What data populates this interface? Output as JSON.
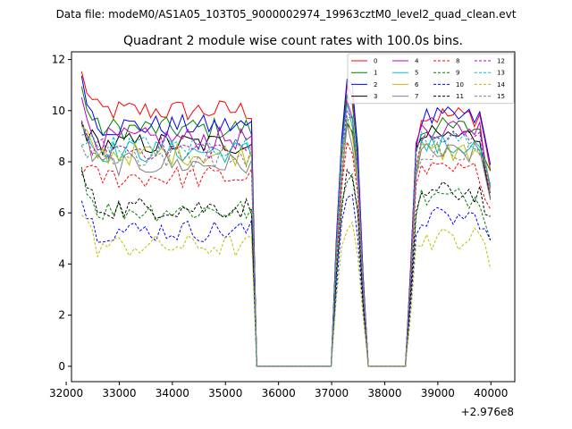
{
  "header": {
    "data_file": "Data file: modeM0/AS1A05_103T05_9000002974_19963cztM0_level2_quad_clean.evt"
  },
  "chart_data": {
    "type": "line",
    "title": "Quadrant 2 module wise count rates with 100.0s bins.",
    "xlabel": "",
    "ylabel": "",
    "x_offset_label": "+2.976e8",
    "xlim": [
      32100,
      40450
    ],
    "ylim": [
      -0.6,
      12.3
    ],
    "x_ticks": [
      32000,
      33000,
      34000,
      35000,
      36000,
      37000,
      38000,
      39000,
      40000
    ],
    "y_ticks": [
      0,
      2,
      4,
      6,
      8,
      10,
      12
    ],
    "x_tick_labels": [
      "32000",
      "33000",
      "34000",
      "35000",
      "36000",
      "37000",
      "38000",
      "39000",
      "40000"
    ],
    "y_tick_labels": [
      "0",
      "2",
      "4",
      "6",
      "8",
      "10",
      "12"
    ],
    "legend": {
      "placement": "top-right",
      "columns": 4
    },
    "segments": [
      {
        "start": 32290,
        "end": 35510
      },
      {
        "start": 37040,
        "end": 37620
      },
      {
        "start": 38410,
        "end": 40060
      }
    ],
    "gaps": [
      {
        "start": 35510,
        "end": 37040
      },
      {
        "start": 37620,
        "end": 38410
      }
    ],
    "bin_width_s": 100,
    "series": [
      {
        "name": "0",
        "color": "#ff0000",
        "style": "solid",
        "level": 10.0,
        "start": 11.4,
        "peak": 11.0,
        "post": 9.8,
        "end": 6.8
      },
      {
        "name": "1",
        "color": "#008000",
        "style": "solid",
        "level": 9.3,
        "start": 10.8,
        "peak": 10.6,
        "post": 9.3,
        "end": 6.5
      },
      {
        "name": "2",
        "color": "#0000ff",
        "style": "solid",
        "level": 9.4,
        "start": 11.5,
        "peak": 11.0,
        "post": 9.7,
        "end": 7.0
      },
      {
        "name": "3",
        "color": "#000000",
        "style": "solid",
        "level": 8.7,
        "start": 9.5,
        "peak": 9.8,
        "post": 9.0,
        "end": 6.0
      },
      {
        "name": "4",
        "color": "#bf00bf",
        "style": "solid",
        "level": 8.9,
        "start": 10.2,
        "peak": 10.4,
        "post": 9.3,
        "end": 6.4
      },
      {
        "name": "5",
        "color": "#00bfbf",
        "style": "solid",
        "level": 8.4,
        "start": 9.6,
        "peak": 10.0,
        "post": 8.6,
        "end": 6.2
      },
      {
        "name": "6",
        "color": "#bfbf00",
        "style": "solid",
        "level": 8.3,
        "start": 9.2,
        "peak": 9.5,
        "post": 8.4,
        "end": 6.0
      },
      {
        "name": "7",
        "color": "#808080",
        "style": "solid",
        "level": 7.9,
        "start": 9.3,
        "peak": 9.2,
        "post": 8.3,
        "end": 5.8
      },
      {
        "name": "8",
        "color": "#ff0000",
        "style": "dashed",
        "level": 7.4,
        "start": 7.8,
        "peak": 8.7,
        "post": 7.6,
        "end": 5.6
      },
      {
        "name": "9",
        "color": "#008000",
        "style": "dashed",
        "level": 6.1,
        "start": 7.8,
        "peak": 7.6,
        "post": 6.6,
        "end": 4.8
      },
      {
        "name": "10",
        "color": "#0000ff",
        "style": "dashed",
        "level": 5.3,
        "start": 6.5,
        "peak": 6.8,
        "post": 5.8,
        "end": 4.2
      },
      {
        "name": "11",
        "color": "#000000",
        "style": "dashed",
        "level": 6.2,
        "start": 7.6,
        "peak": 7.8,
        "post": 6.8,
        "end": 4.9
      },
      {
        "name": "12",
        "color": "#bf00bf",
        "style": "dashed",
        "level": 8.5,
        "start": 9.2,
        "peak": 10.1,
        "post": 8.9,
        "end": 6.2
      },
      {
        "name": "13",
        "color": "#00bfbf",
        "style": "dashed",
        "level": 8.6,
        "start": 9.0,
        "peak": 9.9,
        "post": 8.8,
        "end": 6.2
      },
      {
        "name": "14",
        "color": "#bfbf00",
        "style": "dashed",
        "level": 4.7,
        "start": 6.1,
        "peak": 5.8,
        "post": 5.0,
        "end": 3.6
      },
      {
        "name": "15",
        "color": "#808080",
        "style": "dashed",
        "level": 8.2,
        "start": 8.8,
        "peak": 9.6,
        "post": 8.5,
        "end": 6.0
      }
    ]
  }
}
